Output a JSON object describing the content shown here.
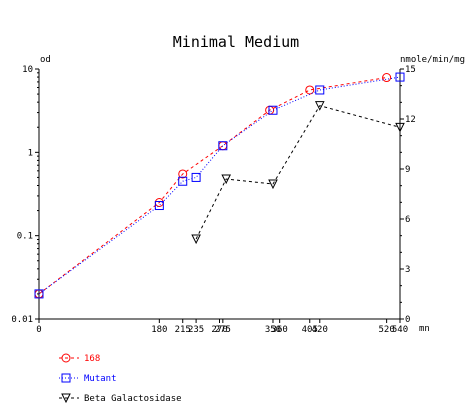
{
  "chart_data": {
    "type": "line",
    "title": "Minimal Medium",
    "xlabel": "mn",
    "ylabel_left": "od",
    "ylabel_right": "nmole/min/mg",
    "x_ticks": [
      0,
      180,
      215,
      235,
      270,
      275,
      350,
      360,
      405,
      420,
      520,
      540
    ],
    "x_tick_labels": [
      "0",
      "180",
      "215",
      "235",
      "270",
      "275",
      "350",
      "360",
      "405",
      "420",
      "520",
      "540"
    ],
    "xlim": [
      0,
      540
    ],
    "y_left": {
      "scale": "log",
      "lim": [
        0.01,
        10
      ],
      "ticks": [
        0.01,
        0.1,
        1,
        10
      ],
      "tick_labels": [
        "0.01",
        "0.1",
        "1",
        "10"
      ]
    },
    "y_right": {
      "scale": "linear",
      "lim": [
        0,
        15
      ],
      "ticks": [
        0,
        3,
        6,
        9,
        12,
        15
      ],
      "tick_labels": [
        "0",
        "3",
        "6",
        "9",
        "12",
        "15"
      ]
    },
    "grid": false,
    "legend_position": "bottom-left",
    "series": [
      {
        "name": "168",
        "axis": "left",
        "color": "#ff0000",
        "marker": "circle",
        "line": "dashed",
        "x": [
          0,
          180,
          215,
          275,
          345,
          405,
          520
        ],
        "y": [
          0.02,
          0.25,
          0.55,
          1.2,
          3.2,
          5.6,
          7.9
        ]
      },
      {
        "name": "Mutant",
        "axis": "left",
        "color": "#0000ff",
        "marker": "square",
        "line": "dotted",
        "x": [
          0,
          180,
          215,
          235,
          275,
          350,
          420,
          540
        ],
        "y": [
          0.02,
          0.23,
          0.45,
          0.5,
          1.2,
          3.2,
          5.6,
          8.0
        ]
      },
      {
        "name": "Beta Galactosidase",
        "axis": "right",
        "color": "#000000",
        "marker": "triangle-down",
        "line": "dashed",
        "x": [
          235,
          280,
          350,
          420,
          540
        ],
        "y": [
          4.8,
          8.4,
          8.1,
          12.8,
          11.5
        ]
      }
    ]
  }
}
